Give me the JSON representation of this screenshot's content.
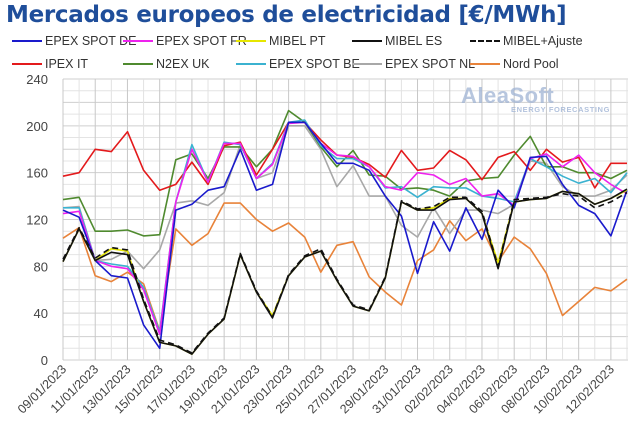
{
  "title": "Mercados europeos de electricidad [€/MWh]",
  "logo": {
    "name": "AleaSoft",
    "tagline": "ENERGY FORECASTING"
  },
  "chart_data": {
    "type": "line",
    "title": "Mercados europeos de electricidad [€/MWh]",
    "xlabel": "",
    "ylabel": "",
    "ylim": [
      0,
      240
    ],
    "yticks": [
      0,
      40,
      80,
      120,
      160,
      200,
      240
    ],
    "grid": true,
    "legend_position": "top",
    "x": [
      "09/01/2023",
      "10/01/2023",
      "11/01/2023",
      "12/01/2023",
      "13/01/2023",
      "14/01/2023",
      "15/01/2023",
      "16/01/2023",
      "17/01/2023",
      "18/01/2023",
      "19/01/2023",
      "20/01/2023",
      "21/01/2023",
      "22/01/2023",
      "23/01/2023",
      "24/01/2023",
      "25/01/2023",
      "26/01/2023",
      "27/01/2023",
      "28/01/2023",
      "29/01/2023",
      "30/01/2023",
      "31/01/2023",
      "01/02/2023",
      "02/02/2023",
      "03/02/2023",
      "04/02/2023",
      "05/02/2023",
      "06/02/2023",
      "07/02/2023",
      "08/02/2023",
      "09/02/2023",
      "10/02/2023",
      "11/02/2023",
      "12/02/2023",
      "13/02/2023"
    ],
    "xtick_labels": [
      "09/01/2023",
      "11/01/2023",
      "13/01/2023",
      "15/01/2023",
      "17/01/2023",
      "19/01/2023",
      "21/01/2023",
      "23/01/2023",
      "25/01/2023",
      "27/01/2023",
      "29/01/2023",
      "31/01/2023",
      "02/02/2023",
      "04/02/2023",
      "06/02/2023",
      "08/02/2023",
      "10/02/2023",
      "12/02/2023"
    ],
    "series": [
      {
        "name": "EPEX SPOT DE",
        "color": "#1a1acc",
        "dash": false,
        "values": [
          128,
          122,
          85,
          72,
          70,
          30,
          10,
          128,
          133,
          145,
          148,
          180,
          145,
          150,
          203,
          203,
          185,
          168,
          168,
          162,
          140,
          123,
          74,
          118,
          93,
          130,
          103,
          145,
          130,
          173,
          174,
          150,
          132,
          125,
          106,
          145
        ]
      },
      {
        "name": "EPEX SPOT FR",
        "color": "#ee22ee",
        "dash": false,
        "values": [
          125,
          127,
          85,
          80,
          78,
          60,
          22,
          135,
          180,
          152,
          185,
          185,
          155,
          167,
          202,
          203,
          185,
          175,
          174,
          165,
          148,
          145,
          160,
          158,
          150,
          155,
          140,
          142,
          132,
          172,
          176,
          165,
          175,
          160,
          150,
          142
        ]
      },
      {
        "name": "MIBEL PT",
        "color": "#e6e600",
        "dash": false,
        "values": [
          84,
          112,
          85,
          95,
          93,
          50,
          15,
          12,
          5,
          22,
          35,
          90,
          58,
          38,
          72,
          88,
          93,
          68,
          46,
          42,
          70,
          135,
          128,
          130,
          138,
          138,
          125,
          83,
          135,
          137,
          138,
          144,
          142,
          133,
          138,
          145
        ]
      },
      {
        "name": "MIBEL ES",
        "color": "#111111",
        "dash": false,
        "values": [
          84,
          112,
          85,
          92,
          90,
          50,
          15,
          12,
          5,
          22,
          35,
          90,
          58,
          36,
          72,
          88,
          93,
          68,
          46,
          42,
          70,
          135,
          128,
          128,
          137,
          138,
          125,
          78,
          135,
          137,
          138,
          144,
          142,
          133,
          138,
          146
        ]
      },
      {
        "name": "MIBEL+Ajuste",
        "color": "#111111",
        "dash": true,
        "values": [
          86,
          113,
          87,
          96,
          94,
          52,
          17,
          13,
          6,
          23,
          36,
          91,
          59,
          37,
          73,
          89,
          95,
          69,
          47,
          43,
          71,
          136,
          129,
          131,
          139,
          139,
          127,
          80,
          137,
          138,
          139,
          142,
          140,
          130,
          135,
          143
        ]
      },
      {
        "name": "IPEX IT",
        "color": "#e31a1c",
        "dash": false,
        "values": [
          157,
          160,
          180,
          178,
          195,
          162,
          145,
          150,
          169,
          150,
          183,
          186,
          158,
          180,
          203,
          203,
          188,
          175,
          173,
          167,
          156,
          179,
          162,
          164,
          179,
          171,
          154,
          173,
          178,
          162,
          180,
          169,
          173,
          147,
          168,
          168
        ]
      },
      {
        "name": "N2EX UK",
        "color": "#4f8a2f",
        "dash": false,
        "values": [
          137,
          139,
          110,
          110,
          111,
          106,
          107,
          171,
          176,
          155,
          182,
          182,
          165,
          180,
          213,
          203,
          182,
          165,
          179,
          158,
          157,
          146,
          147,
          145,
          140,
          153,
          155,
          156,
          175,
          191,
          165,
          165,
          160,
          160,
          155,
          162
        ]
      },
      {
        "name": "EPEX SPOT BE",
        "color": "#3bb2d0",
        "dash": false,
        "values": [
          130,
          130,
          85,
          82,
          80,
          62,
          24,
          135,
          184,
          152,
          186,
          184,
          155,
          168,
          203,
          205,
          183,
          172,
          172,
          165,
          147,
          148,
          139,
          148,
          147,
          147,
          140,
          138,
          135,
          172,
          165,
          157,
          151,
          155,
          143,
          160
        ]
      },
      {
        "name": "EPEX SPOT NL",
        "color": "#a8a8a8",
        "dash": false,
        "values": [
          130,
          131,
          85,
          86,
          93,
          78,
          94,
          134,
          136,
          132,
          143,
          184,
          155,
          160,
          200,
          200,
          180,
          148,
          166,
          140,
          140,
          115,
          105,
          130,
          108,
          128,
          128,
          125,
          133,
          170,
          168,
          148,
          140,
          140,
          145,
          158
        ]
      },
      {
        "name": "Nord Pool",
        "color": "#e8833a",
        "dash": false,
        "values": [
          104,
          113,
          72,
          67,
          75,
          65,
          25,
          112,
          98,
          108,
          134,
          134,
          120,
          110,
          117,
          105,
          75,
          98,
          101,
          71,
          58,
          47,
          85,
          94,
          119,
          102,
          112,
          84,
          105,
          95,
          74,
          38,
          50,
          62,
          59,
          69
        ]
      }
    ]
  }
}
